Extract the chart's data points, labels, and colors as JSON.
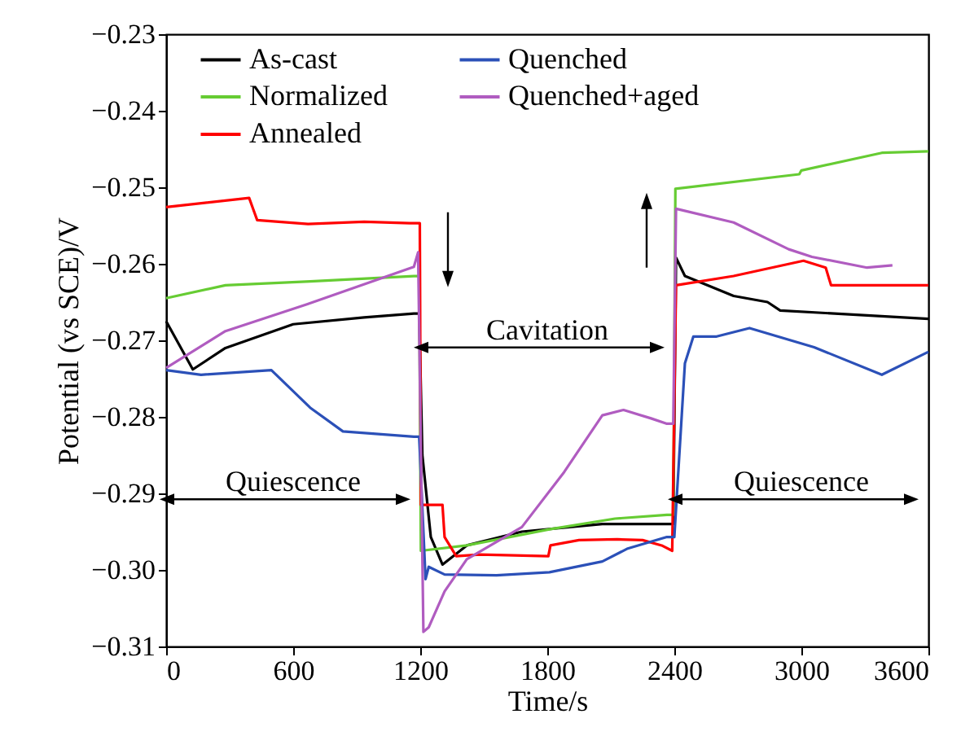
{
  "chart_data": {
    "type": "line",
    "xlabel": "Time/s",
    "ylabel": "Potential (vs SCE)/V",
    "xlim": [
      0,
      3600
    ],
    "xticks": [
      0,
      600,
      1200,
      1800,
      2400,
      3000,
      3600
    ],
    "ylim": [
      -0.31,
      -0.23
    ],
    "yticks": [
      -0.31,
      {
        "value": -0.3,
        "label": "−0.30"
      },
      -0.29,
      -0.28,
      -0.27,
      -0.26,
      -0.25,
      -0.24,
      -0.23
    ],
    "grid": false,
    "legend": "top",
    "marker": "none",
    "line_style": "solid",
    "series": [
      {
        "name": "As-cast",
        "color": "#000000",
        "x": [
          0,
          126,
          280,
          600,
          935,
          1170,
          1195,
          1210,
          1250,
          1305,
          1420,
          1680,
          2060,
          2365,
          2395,
          2408,
          2450,
          2680,
          2840,
          2900,
          3600
        ],
        "values": [
          -0.2675,
          -0.2738,
          -0.271,
          -0.2679,
          -0.267,
          -0.2665,
          -0.2665,
          -0.285,
          -0.2957,
          -0.2993,
          -0.2968,
          -0.295,
          -0.294,
          -0.294,
          -0.294,
          -0.2592,
          -0.2616,
          -0.2642,
          -0.265,
          -0.2661,
          -0.2672
        ]
      },
      {
        "name": "Normalized",
        "color": "#66cc33",
        "x": [
          0,
          280,
          680,
          1170,
          1195,
          1203,
          1420,
          1810,
          2120,
          2365,
          2395,
          2405,
          2990,
          3000,
          3380,
          3600
        ],
        "values": [
          -0.2645,
          -0.2628,
          -0.2623,
          -0.2616,
          -0.2616,
          -0.2975,
          -0.2968,
          -0.2947,
          -0.2933,
          -0.2928,
          -0.2928,
          -0.2502,
          -0.2483,
          -0.2478,
          -0.2455,
          -0.2453
        ]
      },
      {
        "name": "Annealed",
        "color": "#ff0000",
        "x": [
          0,
          392,
          430,
          670,
          935,
          1150,
          1198,
          1203,
          1305,
          1315,
          1370,
          1480,
          1805,
          1815,
          1950,
          2130,
          2250,
          2340,
          2390,
          2408,
          2680,
          3010,
          3115,
          3140,
          3600
        ],
        "values": [
          -0.2526,
          -0.2514,
          -0.2543,
          -0.2548,
          -0.2545,
          -0.2547,
          -0.2547,
          -0.2915,
          -0.2915,
          -0.2957,
          -0.2982,
          -0.298,
          -0.2982,
          -0.2968,
          -0.2961,
          -0.296,
          -0.2961,
          -0.2968,
          -0.2975,
          -0.2628,
          -0.2616,
          -0.2596,
          -0.2605,
          -0.2628,
          -0.2628
        ]
      },
      {
        "name": "Quenched",
        "color": "#2b50b8",
        "x": [
          0,
          165,
          497,
          680,
          835,
          1170,
          1195,
          1225,
          1240,
          1315,
          1560,
          1810,
          2060,
          2180,
          2365,
          2400,
          2450,
          2490,
          2600,
          2755,
          3060,
          3380,
          3600
        ],
        "values": [
          -0.2739,
          -0.2745,
          -0.2739,
          -0.2788,
          -0.2819,
          -0.2826,
          -0.2826,
          -0.3012,
          -0.2996,
          -0.3006,
          -0.3007,
          -0.3003,
          -0.2989,
          -0.2972,
          -0.2957,
          -0.2957,
          -0.273,
          -0.2695,
          -0.2695,
          -0.2684,
          -0.2709,
          -0.2745,
          -0.2715
        ]
      },
      {
        "name": "Quenched+aged",
        "color": "#b05cc0",
        "x": [
          0,
          280,
          665,
          1170,
          1190,
          1215,
          1240,
          1315,
          1420,
          1680,
          1880,
          2060,
          2160,
          2290,
          2365,
          2395,
          2408,
          2680,
          2940,
          3050,
          3310,
          3430
        ],
        "values": [
          -0.2736,
          -0.2688,
          -0.2653,
          -0.2604,
          -0.2585,
          -0.3081,
          -0.3075,
          -0.3028,
          -0.2986,
          -0.2944,
          -0.2872,
          -0.2798,
          -0.2791,
          -0.2802,
          -0.2809,
          -0.2809,
          -0.2528,
          -0.2546,
          -0.2581,
          -0.2591,
          -0.2605,
          -0.2602
        ]
      }
    ],
    "annotations": [
      "Quiescence",
      "Cavitation",
      "Quiescence"
    ]
  }
}
